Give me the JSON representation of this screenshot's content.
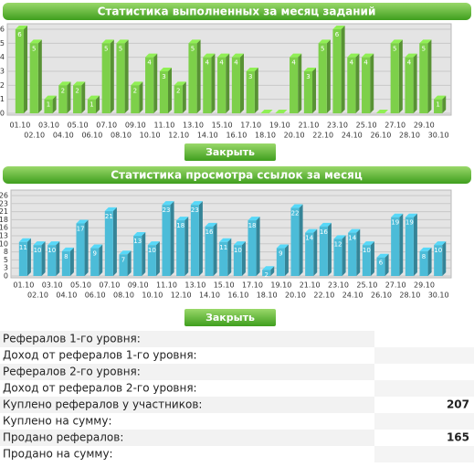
{
  "chart_data": [
    {
      "type": "bar",
      "title": "Статистика выполненных за месяц заданий",
      "button": "Закрыть",
      "color": "#7dd04a",
      "categories": [
        "01.10",
        "02.10",
        "03.10",
        "04.10",
        "05.10",
        "06.10",
        "07.10",
        "08.10",
        "09.10",
        "10.10",
        "11.10",
        "12.10",
        "13.10",
        "14.10",
        "15.10",
        "16.10",
        "17.10",
        "18.10",
        "19.10",
        "20.10",
        "21.10",
        "22.10",
        "23.10",
        "24.10",
        "25.10",
        "26.10",
        "27.10",
        "28.10",
        "29.10",
        "30.10"
      ],
      "values": [
        6,
        5,
        1,
        2,
        2,
        1,
        5,
        5,
        2,
        4,
        3,
        2,
        5,
        4,
        4,
        4,
        3,
        0,
        0,
        4,
        3,
        5,
        6,
        4,
        4,
        0,
        5,
        4,
        5,
        1
      ],
      "ylim": [
        0,
        6
      ],
      "yticks": [
        0,
        1,
        2,
        3,
        4,
        5,
        6
      ],
      "grid": true
    },
    {
      "type": "bar",
      "title": "Статистика просмотра ссылок за месяц",
      "button": "Закрыть",
      "color": "#4cbcd8",
      "categories": [
        "01.10",
        "02.10",
        "03.10",
        "04.10",
        "05.10",
        "06.10",
        "07.10",
        "08.10",
        "09.10",
        "10.10",
        "11.10",
        "12.10",
        "13.10",
        "14.10",
        "15.10",
        "16.10",
        "17.10",
        "18.10",
        "19.10",
        "20.10",
        "21.10",
        "22.10",
        "23.10",
        "24.10",
        "25.10",
        "26.10",
        "27.10",
        "28.10",
        "29.10",
        "30.10"
      ],
      "values": [
        11,
        10,
        10,
        8,
        17,
        9,
        21,
        7,
        13,
        10,
        23,
        18,
        23,
        16,
        11,
        10,
        18,
        2,
        9,
        22,
        14,
        16,
        12,
        14,
        10,
        6,
        19,
        19,
        8,
        10
      ],
      "ylim": [
        0,
        26
      ],
      "yticks": [
        0,
        {
          "value": 2.6,
          "label": "3"
        },
        {
          "value": 5.2,
          "label": "5"
        },
        {
          "value": 7.8,
          "label": "8"
        },
        {
          "value": 10.4,
          "label": "10"
        },
        13,
        {
          "value": 15.6,
          "label": "16"
        },
        {
          "value": 18.2,
          "label": "18"
        },
        {
          "value": 20.8,
          "label": "21"
        },
        {
          "value": 23.4,
          "label": "23"
        },
        26
      ],
      "grid": true
    }
  ],
  "table": {
    "rows": [
      {
        "label": "Рефералов 1-го уровня:"
      },
      {
        "label": "Доход от рефералов 1-го уровня:"
      },
      {
        "label": "Рефералов 2-го уровня:"
      },
      {
        "label": "Доход от рефералов 2-го уровня:"
      },
      {
        "label": "Куплено рефералов у участников:",
        "value": 207
      },
      {
        "label": "Куплено на сумму:"
      },
      {
        "label": "Продано рефералов:",
        "value": 165
      },
      {
        "label": "Продано на сумму:"
      }
    ]
  }
}
